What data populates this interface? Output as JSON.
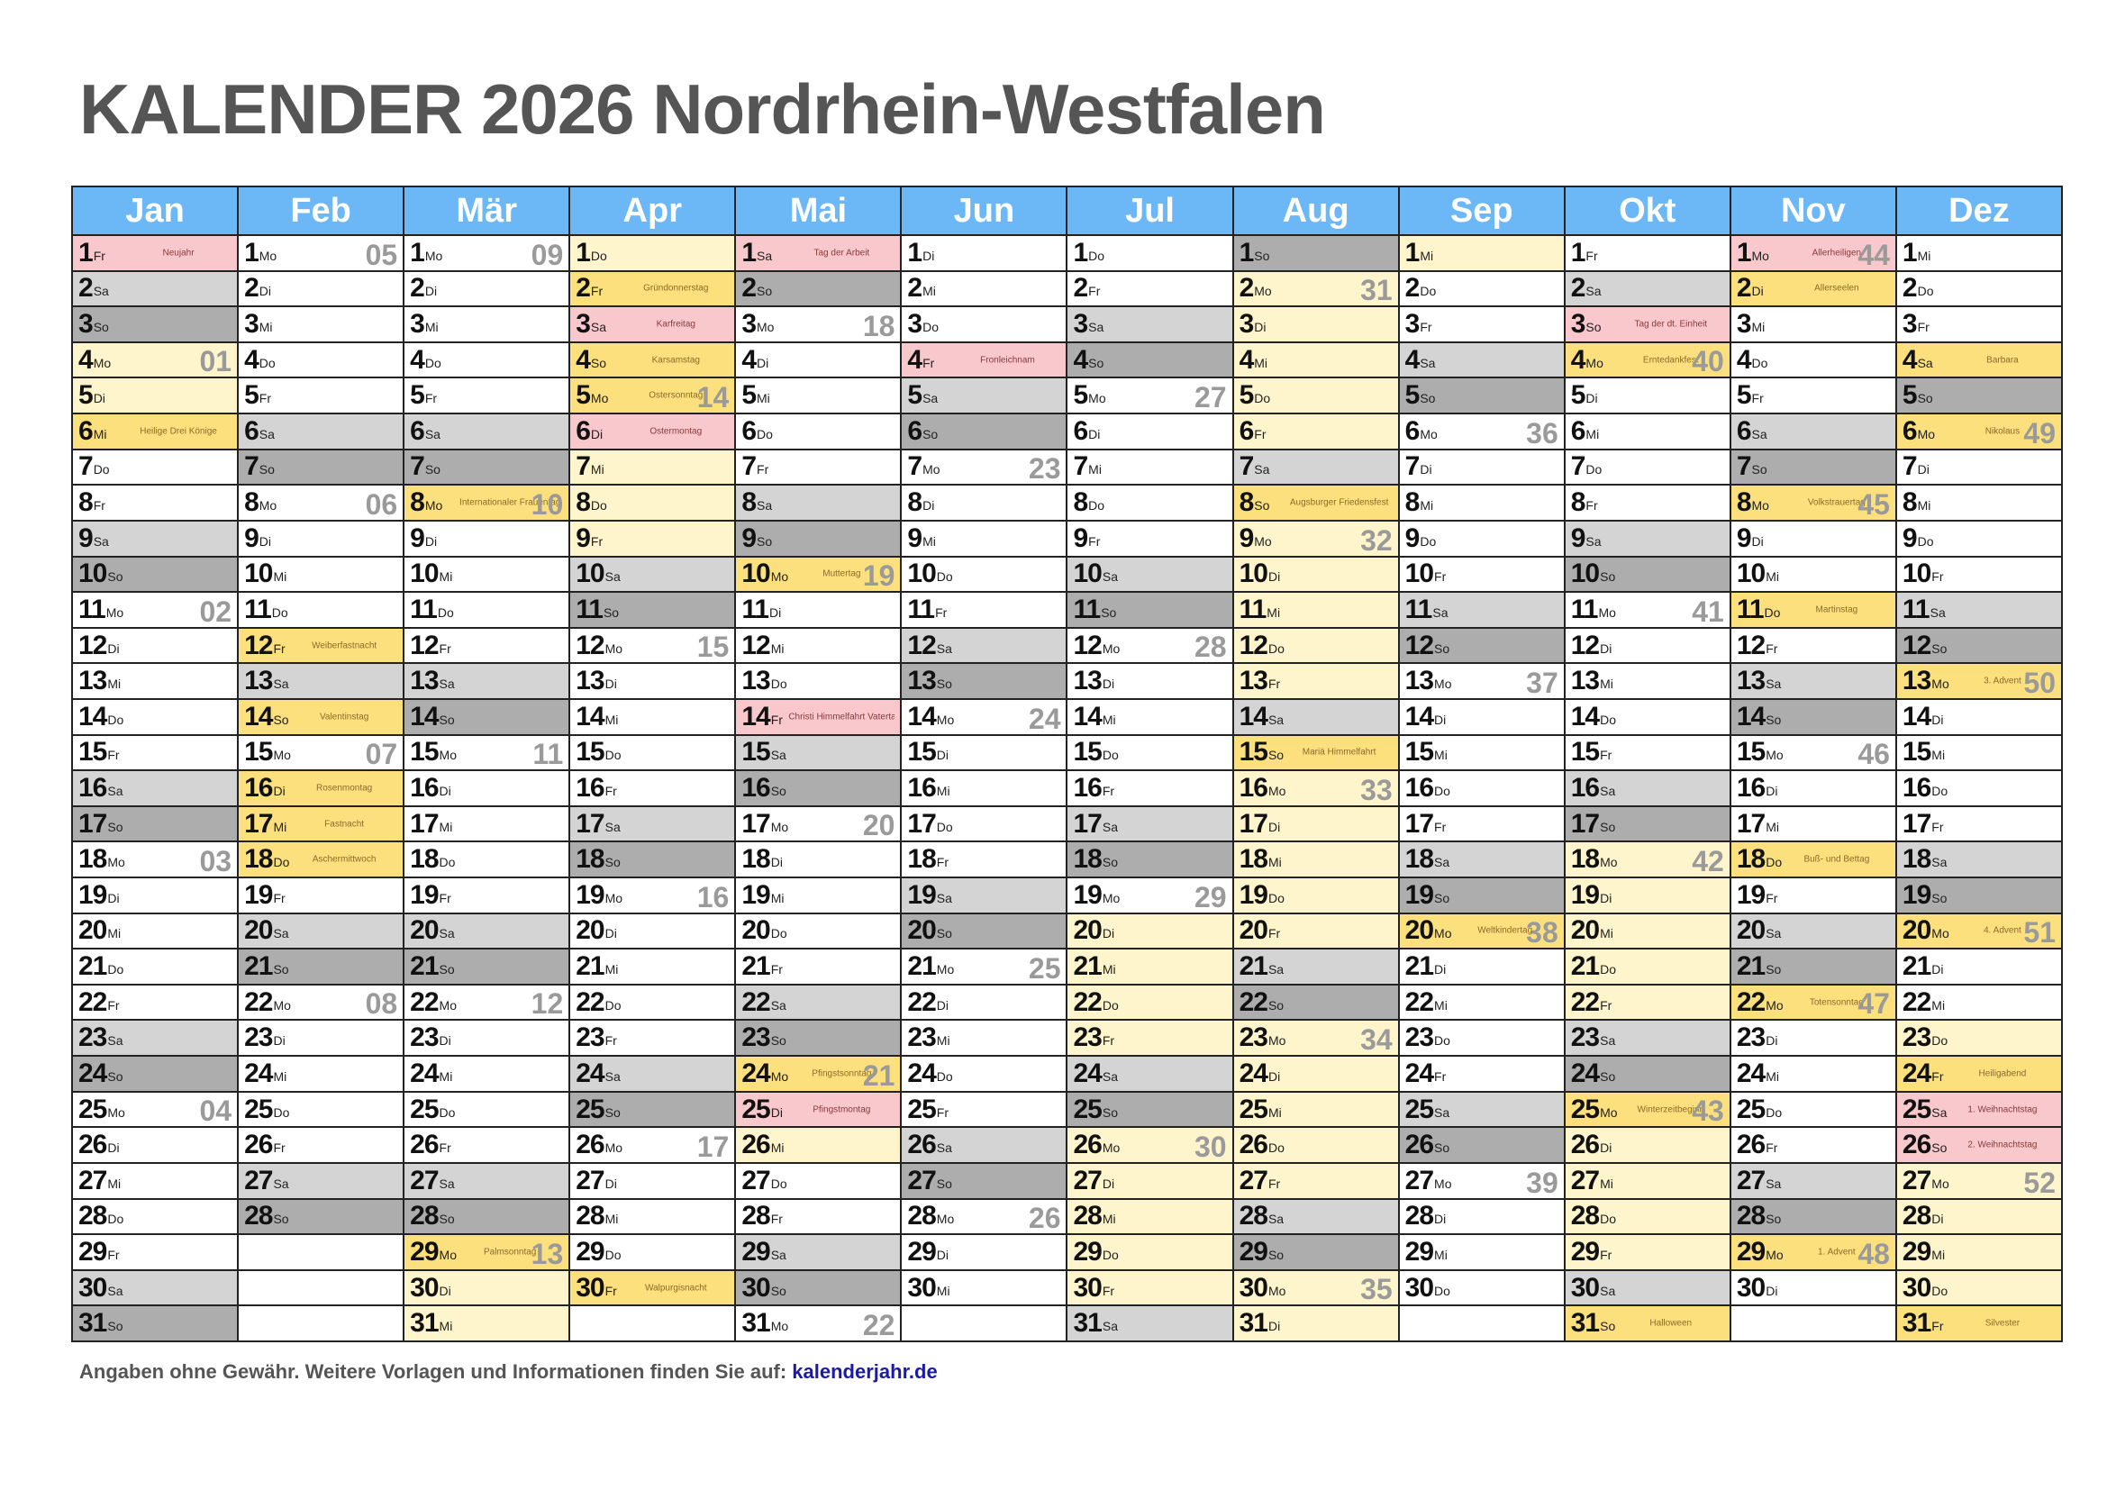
{
  "title": "KALENDER 2026 Nordrhein-Westfalen",
  "footer": {
    "text": "Angaben ohne Gewähr. Weitere Vorlagen und Informationen finden Sie auf:",
    "link": "kalenderjahr.de"
  },
  "colors": {
    "header": "#6cb7f5",
    "saturday": "#d4d4d4",
    "sunday": "#adadad",
    "holiday": "#f9c8cc",
    "school_holiday": "#fff5cc",
    "special_day": "#fce07d"
  },
  "months": [
    {
      "name": "Jan",
      "days": 31,
      "start": 4,
      "notes": {
        "1": "Neujahr",
        "6": "Heilige Drei Könige"
      },
      "pub": [
        1
      ],
      "special": [
        6
      ],
      "ferien": [
        2,
        3,
        4,
        5,
        6
      ]
    },
    {
      "name": "Feb",
      "days": 28,
      "start": 0,
      "notes": {
        "12": "Weiberfastnacht",
        "14": "Valentinstag",
        "16": "Rosenmontag",
        "17": "Fastnacht",
        "18": "Aschermittwoch"
      },
      "pub": [],
      "special": [
        12,
        14,
        16,
        17,
        18
      ],
      "ferien": []
    },
    {
      "name": "Mär",
      "days": 31,
      "start": 0,
      "notes": {
        "8": "Internationaler Frauentag",
        "29": "Palmsonntag"
      },
      "pub": [],
      "special": [
        8,
        29
      ],
      "ferien": [
        30,
        31
      ]
    },
    {
      "name": "Apr",
      "days": 30,
      "start": 3,
      "notes": {
        "2": "Gründonnerstag",
        "3": "Karfreitag",
        "4": "Karsamstag",
        "5": "Ostersonntag",
        "6": "Ostermontag",
        "30": "Walpurgisnacht"
      },
      "pub": [
        3,
        6
      ],
      "special": [
        2,
        4,
        5,
        30
      ],
      "ferien": [
        1,
        2,
        3,
        4,
        5,
        6,
        7,
        8,
        9,
        10,
        11
      ]
    },
    {
      "name": "Mai",
      "days": 31,
      "start": 5,
      "notes": {
        "1": "Tag der Arbeit",
        "10": "Muttertag",
        "14": "Christi Himmelfahrt Vatertag",
        "24": "Pfingstsonntag",
        "25": "Pfingstmontag"
      },
      "pub": [
        1,
        14,
        25
      ],
      "special": [
        10,
        24
      ],
      "ferien": [
        26
      ]
    },
    {
      "name": "Jun",
      "days": 30,
      "start": 1,
      "notes": {
        "4": "Fronleichnam"
      },
      "pub": [
        4
      ],
      "special": [],
      "ferien": []
    },
    {
      "name": "Jul",
      "days": 31,
      "start": 3,
      "notes": {},
      "pub": [],
      "special": [],
      "ferien": [
        20,
        21,
        22,
        23,
        24,
        25,
        26,
        27,
        28,
        29,
        30,
        31
      ]
    },
    {
      "name": "Aug",
      "days": 31,
      "start": 6,
      "notes": {
        "8": "Augsburger Friedensfest",
        "15": "Mariä Himmelfahrt"
      },
      "pub": [],
      "special": [
        8,
        15
      ],
      "ferien": [
        1,
        2,
        3,
        4,
        5,
        6,
        7,
        8,
        9,
        10,
        11,
        12,
        13,
        14,
        15,
        16,
        17,
        18,
        19,
        20,
        21,
        22,
        23,
        24,
        25,
        26,
        27,
        28,
        29,
        30,
        31
      ]
    },
    {
      "name": "Sep",
      "days": 30,
      "start": 2,
      "notes": {
        "20": "Weltkindertag"
      },
      "pub": [],
      "special": [
        20
      ],
      "ferien": [
        1
      ]
    },
    {
      "name": "Okt",
      "days": 31,
      "start": 4,
      "notes": {
        "3": "Tag der dt. Einheit",
        "4": "Erntedankfest",
        "25": "Winterzeitbeginn",
        "31": "Halloween"
      },
      "pub": [
        3
      ],
      "special": [
        4,
        25,
        31
      ],
      "ferien": [
        17,
        18,
        19,
        20,
        21,
        22,
        23,
        24,
        25,
        26,
        27,
        28,
        29,
        30,
        31
      ]
    },
    {
      "name": "Nov",
      "days": 30,
      "start": 0,
      "notes": {
        "1": "Allerheiligen",
        "2": "Allerseelen",
        "8": "Volkstrauertag",
        "11": "Martinstag",
        "18": "Buß- und Bettag",
        "22": "Totensonntag",
        "29": "1. Advent"
      },
      "pub": [
        1
      ],
      "special": [
        2,
        8,
        11,
        18,
        22,
        29
      ],
      "ferien": []
    },
    {
      "name": "Dez",
      "days": 31,
      "start": 2,
      "notes": {
        "4": "Barbara",
        "6": "Nikolaus",
        "13": "3. Advent",
        "20": "4. Advent",
        "24": "Heiligabend",
        "25": "1. Weihnachtstag",
        "26": "2. Weihnachtstag",
        "31": "Silvester"
      },
      "pub": [
        25,
        26
      ],
      "special": [
        4,
        6,
        13,
        20,
        24,
        31
      ],
      "ferien": [
        23,
        24,
        25,
        26,
        27,
        28,
        29,
        30,
        31
      ]
    }
  ],
  "weekdays": [
    "Mo",
    "Di",
    "Mi",
    "Do",
    "Fr",
    "Sa",
    "So"
  ]
}
